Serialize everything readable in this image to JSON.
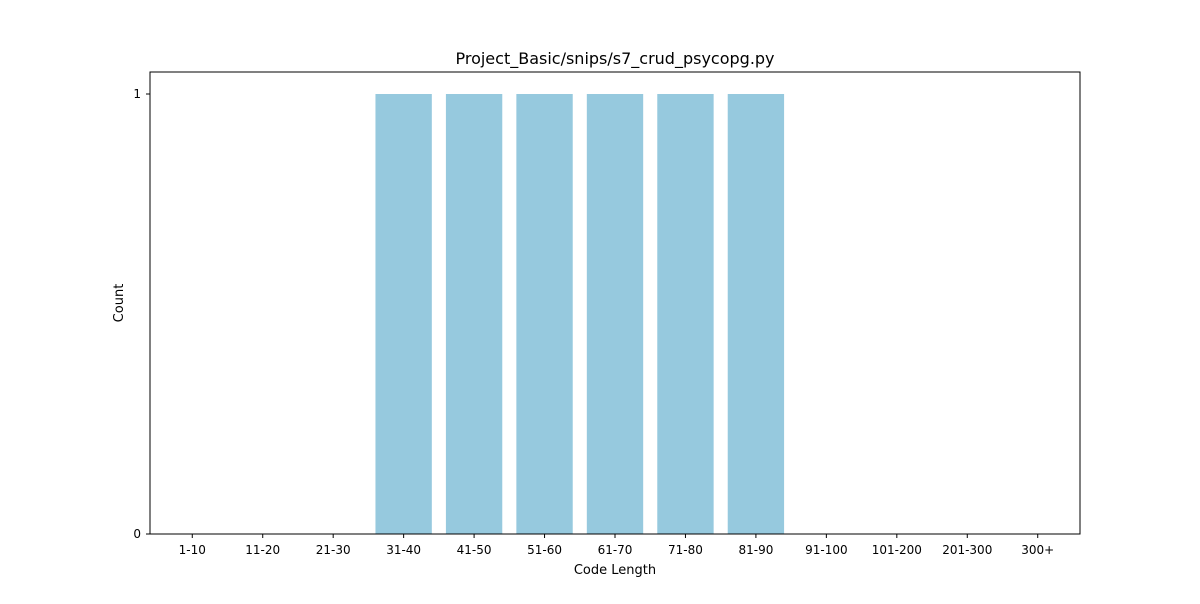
{
  "chart_data": {
    "type": "bar",
    "title": "Project_Basic/snips/s7_crud_psycopg.py",
    "xlabel": "Code Length",
    "ylabel": "Count",
    "categories": [
      "1-10",
      "11-20",
      "21-30",
      "31-40",
      "41-50",
      "51-60",
      "61-70",
      "71-80",
      "81-90",
      "91-100",
      "101-200",
      "201-300",
      "300+"
    ],
    "values": [
      0,
      0,
      0,
      1,
      1,
      1,
      1,
      1,
      1,
      0,
      0,
      0,
      0
    ],
    "ylim": [
      0,
      1.05
    ],
    "yticks": [
      0,
      1
    ],
    "bar_color": "#96c9de",
    "grid": false,
    "legend": "none"
  }
}
